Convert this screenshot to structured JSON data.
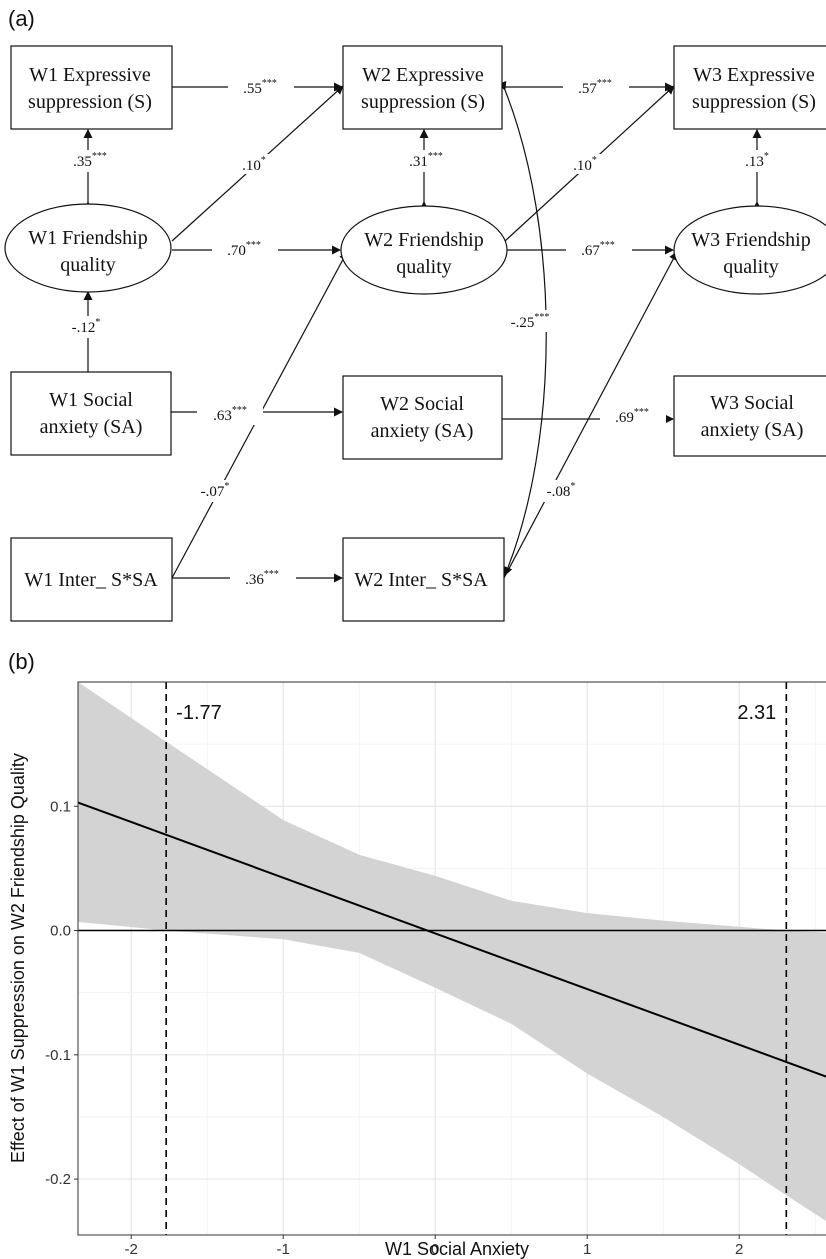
{
  "panel_a": {
    "label": "(a)",
    "nodes": {
      "w1_es": [
        "W1 Expressive",
        "suppression (S)"
      ],
      "w2_es": [
        "W2 Expressive",
        "suppression (S)"
      ],
      "w3_es": [
        "W3 Expressive",
        "suppression (S)"
      ],
      "w1_fq": [
        "W1 Friendship",
        "quality"
      ],
      "w2_fq": [
        "W2 Friendship",
        "quality"
      ],
      "w3_fq": [
        "W3 Friendship",
        "quality"
      ],
      "w1_sa": [
        "W1 Social",
        "anxiety (SA)"
      ],
      "w2_sa": [
        "W2 Social",
        "anxiety (SA)"
      ],
      "w3_sa": [
        "W3 Social",
        "anxiety (SA)"
      ],
      "w1_int": [
        "W1 Inter_ S*SA"
      ],
      "w2_int": [
        "W2 Inter_ S*SA"
      ]
    },
    "coefficients": {
      "es12": {
        "value": ".55",
        "stars": "***"
      },
      "es23": {
        "value": ".57",
        "stars": "***"
      },
      "cov_es1_fq1": {
        "value": ".35",
        "stars": "***"
      },
      "cov_es2_fq2": {
        "value": ".31",
        "stars": "***"
      },
      "cov_es3_fq3": {
        "value": ".13",
        "stars": "*"
      },
      "fq1_es2": {
        "value": ".10",
        "stars": "*"
      },
      "fq2_es3": {
        "value": ".10",
        "stars": "*"
      },
      "fq12": {
        "value": ".70",
        "stars": "***"
      },
      "fq23": {
        "value": ".67",
        "stars": "***"
      },
      "cov_fq1_sa1": {
        "value": "-.12",
        "stars": "*"
      },
      "sa12": {
        "value": ".63",
        "stars": "***"
      },
      "sa23": {
        "value": ".69",
        "stars": "***"
      },
      "int1_fq2": {
        "value": "-.07",
        "stars": "*"
      },
      "int2_fq3": {
        "value": "-.08",
        "stars": "*"
      },
      "int12": {
        "value": ".36",
        "stars": "***"
      },
      "cov_es2_int2": {
        "value": "-.25",
        "stars": "***"
      }
    }
  },
  "panel_b": {
    "label": "(b)"
  },
  "chart_data": {
    "type": "line",
    "xlabel": "W1 Social Anxiety",
    "ylabel": "Effect of W1 Suppression on W2 Friendship Quality",
    "xlim": [
      -2.35,
      2.65
    ],
    "ylim": [
      -0.245,
      0.2
    ],
    "x_ticks": [
      -2,
      -1,
      0,
      1,
      2
    ],
    "x_tick_labels": [
      "-2",
      "-1",
      "0",
      "1",
      "2"
    ],
    "y_ticks": [
      -0.2,
      -0.1,
      0.0,
      0.1
    ],
    "y_tick_labels": [
      "-0.2",
      "-0.1",
      "0.0",
      "0.1"
    ],
    "grid": true,
    "estimate_line": {
      "x": [
        -2.35,
        2.65
      ],
      "y": [
        0.103,
        -0.121
      ]
    },
    "confidence_band": {
      "x": [
        -2.35,
        -1.77,
        -1.0,
        -0.5,
        0.0,
        0.5,
        1.0,
        1.5,
        2.0,
        2.31,
        2.65
      ],
      "upper": [
        0.2,
        0.152,
        0.089,
        0.061,
        0.044,
        0.024,
        0.014,
        0.008,
        0.003,
        0.0,
        -0.002
      ],
      "lower": [
        0.007,
        0.0,
        -0.007,
        -0.018,
        -0.046,
        -0.075,
        -0.115,
        -0.15,
        -0.188,
        -0.213,
        -0.24
      ]
    },
    "reference_line_y": 0,
    "vertical_lines": [
      {
        "x": -1.77,
        "label": "-1.77"
      },
      {
        "x": 2.31,
        "label": "2.31"
      }
    ]
  }
}
